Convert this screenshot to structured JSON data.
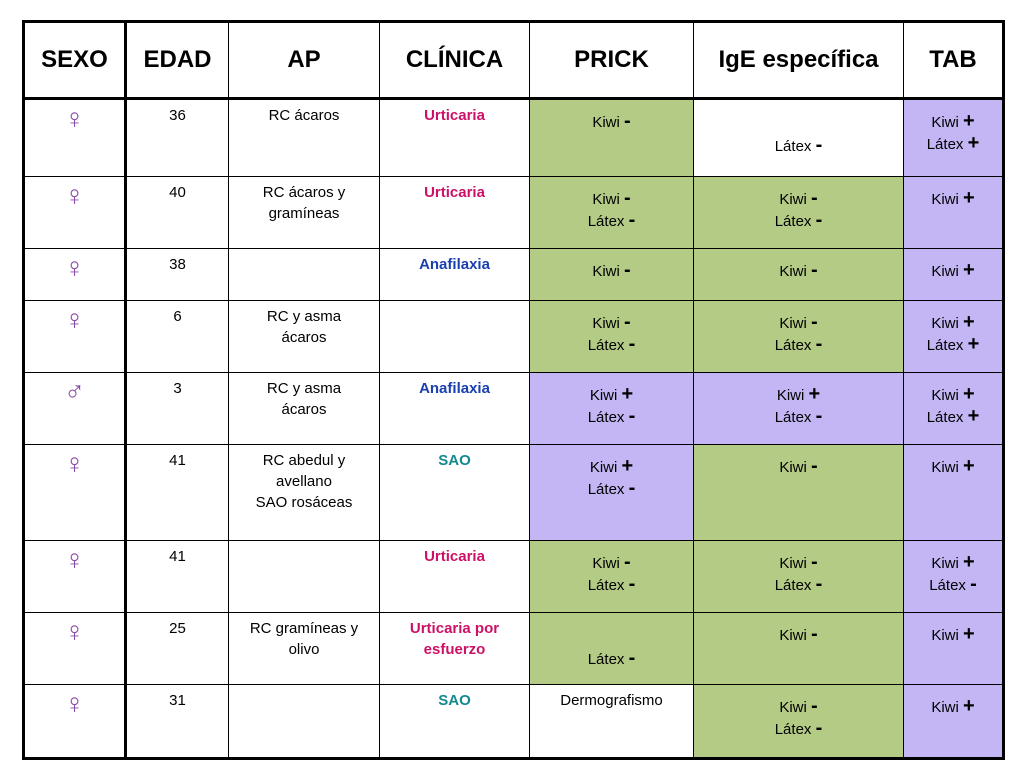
{
  "headers": [
    "SEXO",
    "EDAD",
    "AP",
    "CLÍNICA",
    "PRICK",
    "IgE específica",
    "TAB"
  ],
  "rows": [
    {
      "sexo": "♀",
      "edad": "36",
      "ap": [
        "RC ácaros"
      ],
      "clinica": [
        "Urticaria"
      ],
      "clinica_color": "red",
      "prick": {
        "fill": "green",
        "lines": [
          [
            "Kiwi",
            "-"
          ]
        ]
      },
      "ige": {
        "fill": "",
        "lines": [
          [
            "Látex",
            "-"
          ]
        ],
        "offset": "lg"
      },
      "tab": {
        "fill": "purple",
        "lines": [
          [
            "Kiwi",
            "+"
          ],
          [
            "Látex",
            "+"
          ]
        ]
      }
    },
    {
      "sexo": "♀",
      "edad": "40",
      "ap": [
        "RC ácaros y",
        "gramíneas"
      ],
      "clinica": [
        "Urticaria"
      ],
      "clinica_color": "red",
      "prick": {
        "fill": "green",
        "lines": [
          [
            "Kiwi",
            "-"
          ],
          [
            "Látex",
            "-"
          ]
        ]
      },
      "ige": {
        "fill": "green",
        "lines": [
          [
            "Kiwi",
            "-"
          ],
          [
            "Látex",
            "-"
          ]
        ]
      },
      "tab": {
        "fill": "purple",
        "lines": [
          [
            "Kiwi",
            "+"
          ]
        ]
      }
    },
    {
      "sexo": "♀",
      "edad": "38",
      "ap": [],
      "clinica": [
        "Anafilaxia"
      ],
      "clinica_color": "blue",
      "prick": {
        "fill": "green",
        "lines": [
          [
            "Kiwi",
            "-"
          ]
        ]
      },
      "ige": {
        "fill": "green",
        "lines": [
          [
            "Kiwi",
            "-"
          ]
        ]
      },
      "tab": {
        "fill": "purple",
        "lines": [
          [
            "Kiwi",
            "+"
          ]
        ]
      }
    },
    {
      "sexo": "♀",
      "edad": "6",
      "ap": [
        "RC y asma",
        "ácaros"
      ],
      "clinica": [],
      "clinica_color": "red",
      "prick": {
        "fill": "green",
        "lines": [
          [
            "Kiwi",
            "-"
          ],
          [
            "Látex",
            "-"
          ]
        ]
      },
      "ige": {
        "fill": "green",
        "lines": [
          [
            "Kiwi",
            "-"
          ],
          [
            "Látex",
            "-"
          ]
        ]
      },
      "tab": {
        "fill": "purple",
        "lines": [
          [
            "Kiwi",
            "+"
          ],
          [
            "Látex",
            "+"
          ]
        ]
      }
    },
    {
      "sexo": "♂",
      "edad": "3",
      "ap": [
        "RC y asma",
        "ácaros"
      ],
      "clinica": [
        "Anafilaxia"
      ],
      "clinica_color": "blue",
      "prick": {
        "fill": "purple",
        "lines": [
          [
            "Kiwi",
            "+"
          ],
          [
            "Látex",
            "-"
          ]
        ]
      },
      "ige": {
        "fill": "purple",
        "lines": [
          [
            "Kiwi",
            "+"
          ],
          [
            "Látex",
            "-"
          ]
        ]
      },
      "tab": {
        "fill": "purple",
        "lines": [
          [
            "Kiwi",
            "+"
          ],
          [
            "Látex",
            "+"
          ]
        ]
      }
    },
    {
      "sexo": "♀",
      "edad": "41",
      "ap": [
        "RC abedul y",
        "avellano",
        "SAO rosáceas"
      ],
      "clinica": [
        "SAO"
      ],
      "clinica_color": "teal",
      "prick": {
        "fill": "purple",
        "lines": [
          [
            "Kiwi",
            "+"
          ],
          [
            "Látex",
            "-"
          ]
        ]
      },
      "ige": {
        "fill": "green",
        "lines": [
          [
            "Kiwi",
            "-"
          ]
        ]
      },
      "tab": {
        "fill": "purple",
        "lines": [
          [
            "Kiwi",
            "+"
          ]
        ]
      }
    },
    {
      "sexo": "♀",
      "edad": "41",
      "ap": [],
      "clinica": [
        "Urticaria"
      ],
      "clinica_color": "red",
      "prick": {
        "fill": "green",
        "lines": [
          [
            "Kiwi",
            "-"
          ],
          [
            "Látex",
            "-"
          ]
        ]
      },
      "ige": {
        "fill": "green",
        "lines": [
          [
            "Kiwi",
            "-"
          ],
          [
            "Látex",
            "-"
          ]
        ]
      },
      "tab": {
        "fill": "purple",
        "lines": [
          [
            "Kiwi",
            "+"
          ],
          [
            "Látex",
            "-"
          ]
        ]
      }
    },
    {
      "sexo": "♀",
      "edad": "25",
      "ap": [
        "RC gramíneas y",
        "olivo"
      ],
      "clinica": [
        "Urticaria por",
        "esfuerzo"
      ],
      "clinica_color": "red",
      "prick": {
        "fill": "green",
        "lines": [
          [
            "Látex",
            "-"
          ]
        ],
        "offset": "xl"
      },
      "ige": {
        "fill": "green",
        "lines": [
          [
            "Kiwi",
            "-"
          ]
        ]
      },
      "tab": {
        "fill": "purple",
        "lines": [
          [
            "Kiwi",
            "+"
          ]
        ]
      }
    },
    {
      "sexo": "♀",
      "edad": "31",
      "ap": [],
      "clinica": [
        "SAO"
      ],
      "clinica_color": "teal",
      "prick": {
        "fill": "",
        "lines": [
          [
            "Dermografismo",
            ""
          ]
        ],
        "offset": "none"
      },
      "ige": {
        "fill": "green",
        "lines": [
          [
            "Kiwi",
            "-"
          ],
          [
            "Látex",
            "-"
          ]
        ]
      },
      "tab": {
        "fill": "purple",
        "lines": [
          [
            "Kiwi",
            "+"
          ]
        ]
      }
    }
  ]
}
